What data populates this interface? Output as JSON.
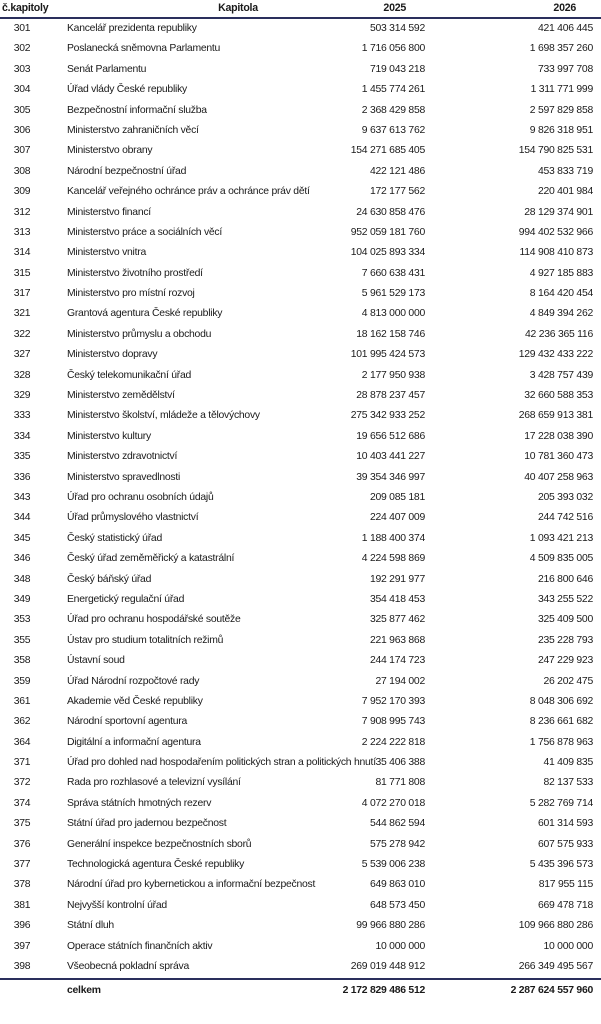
{
  "header": {
    "number": "č.kapitoly",
    "name": "Kapitola",
    "year1": "2025",
    "year2": "2026"
  },
  "rows": [
    {
      "number": "301",
      "name": "Kancelář prezidenta republiky",
      "y2025": "503 314 592",
      "y2026": "421 406 445"
    },
    {
      "number": "302",
      "name": "Poslanecká sněmovna Parlamentu",
      "y2025": "1 716 056 800",
      "y2026": "1 698 357 260"
    },
    {
      "number": "303",
      "name": "Senát Parlamentu",
      "y2025": "719 043 218",
      "y2026": "733 997 708"
    },
    {
      "number": "304",
      "name": "Úřad vlády České republiky",
      "y2025": "1 455 774 261",
      "y2026": "1 311 771 999"
    },
    {
      "number": "305",
      "name": "Bezpečnostní informační služba",
      "y2025": "2 368 429 858",
      "y2026": "2 597 829 858"
    },
    {
      "number": "306",
      "name": "Ministerstvo zahraničních věcí",
      "y2025": "9 637 613 762",
      "y2026": "9 826 318 951"
    },
    {
      "number": "307",
      "name": "Ministerstvo obrany",
      "y2025": "154 271 685 405",
      "y2026": "154 790 825 531"
    },
    {
      "number": "308",
      "name": "Národní bezpečnostní úřad",
      "y2025": "422 121 486",
      "y2026": "453 833 719"
    },
    {
      "number": "309",
      "name": "Kancelář veřejného ochránce práv a ochránce práv dětí",
      "y2025": "172 177 562",
      "y2026": "220 401 984"
    },
    {
      "number": "312",
      "name": "Ministerstvo financí",
      "y2025": "24 630 858 476",
      "y2026": "28 129 374 901"
    },
    {
      "number": "313",
      "name": "Ministerstvo práce a sociálních věcí",
      "y2025": "952 059 181 760",
      "y2026": "994 402 532 966"
    },
    {
      "number": "314",
      "name": "Ministerstvo vnitra",
      "y2025": "104 025 893 334",
      "y2026": "114 908 410 873"
    },
    {
      "number": "315",
      "name": "Ministerstvo životního prostředí",
      "y2025": "7 660 638 431",
      "y2026": "4 927 185 883"
    },
    {
      "number": "317",
      "name": "Ministerstvo pro místní rozvoj",
      "y2025": "5 961 529 173",
      "y2026": "8 164 420 454"
    },
    {
      "number": "321",
      "name": "Grantová agentura České republiky",
      "y2025": "4 813 000 000",
      "y2026": "4 849 394 262"
    },
    {
      "number": "322",
      "name": "Ministerstvo průmyslu a obchodu",
      "y2025": "18 162 158 746",
      "y2026": "42 236 365 116"
    },
    {
      "number": "327",
      "name": "Ministerstvo dopravy",
      "y2025": "101 995 424 573",
      "y2026": "129 432 433 222"
    },
    {
      "number": "328",
      "name": "Český telekomunikační úřad",
      "y2025": "2 177 950 938",
      "y2026": "3 428 757 439"
    },
    {
      "number": "329",
      "name": "Ministerstvo zemědělství",
      "y2025": "28 878 237 457",
      "y2026": "32 660 588 353"
    },
    {
      "number": "333",
      "name": "Ministerstvo školství, mládeže a tělovýchovy",
      "y2025": "275 342 933 252",
      "y2026": "268 659 913 381"
    },
    {
      "number": "334",
      "name": "Ministerstvo kultury",
      "y2025": "19 656 512 686",
      "y2026": "17 228 038 390"
    },
    {
      "number": "335",
      "name": "Ministerstvo zdravotnictví",
      "y2025": "10 403 441 227",
      "y2026": "10 781 360 473"
    },
    {
      "number": "336",
      "name": "Ministerstvo spravedlnosti",
      "y2025": "39 354 346 997",
      "y2026": "40 407 258 963"
    },
    {
      "number": "343",
      "name": "Úřad pro ochranu osobních údajů",
      "y2025": "209 085 181",
      "y2026": "205 393 032"
    },
    {
      "number": "344",
      "name": "Úřad průmyslového vlastnictví",
      "y2025": "224 407 009",
      "y2026": "244 742 516"
    },
    {
      "number": "345",
      "name": "Český statistický úřad",
      "y2025": "1 188 400 374",
      "y2026": "1 093 421 213"
    },
    {
      "number": "346",
      "name": "Český úřad zeměměřický a katastrální",
      "y2025": "4 224 598 869",
      "y2026": "4 509 835 005"
    },
    {
      "number": "348",
      "name": "Český báňský úřad",
      "y2025": "192 291 977",
      "y2026": "216 800 646"
    },
    {
      "number": "349",
      "name": "Energetický regulační úřad",
      "y2025": "354 418 453",
      "y2026": "343 255 522"
    },
    {
      "number": "353",
      "name": "Úřad pro ochranu hospodářské soutěže",
      "y2025": "325 877 462",
      "y2026": "325 409 500"
    },
    {
      "number": "355",
      "name": "Ústav pro studium totalitních režimů",
      "y2025": "221 963 868",
      "y2026": "235 228 793"
    },
    {
      "number": "358",
      "name": "Ústavní soud",
      "y2025": "244 174 723",
      "y2026": "247 229 923"
    },
    {
      "number": "359",
      "name": "Úřad Národní rozpočtové rady",
      "y2025": "27 194 002",
      "y2026": "26 202 475"
    },
    {
      "number": "361",
      "name": "Akademie věd České republiky",
      "y2025": "7 952 170 393",
      "y2026": "8 048 306 692"
    },
    {
      "number": "362",
      "name": "Národní sportovní agentura",
      "y2025": "7 908 995 743",
      "y2026": "8 236 661 682"
    },
    {
      "number": "364",
      "name": "Digitální a informační agentura",
      "y2025": "2 224 222 818",
      "y2026": "1 756 878 963"
    },
    {
      "number": "371",
      "name": "Úřad pro dohled nad hospodařením politických stran a politických hnutí",
      "y2025": "35 406 388",
      "y2026": "41 409 835"
    },
    {
      "number": "372",
      "name": "Rada pro rozhlasové a televizní vysílání",
      "y2025": "81 771 808",
      "y2026": "82 137 533"
    },
    {
      "number": "374",
      "name": "Správa státních hmotných rezerv",
      "y2025": "4 072 270 018",
      "y2026": "5 282 769 714"
    },
    {
      "number": "375",
      "name": "Státní úřad pro jadernou bezpečnost",
      "y2025": "544 862 594",
      "y2026": "601 314 593"
    },
    {
      "number": "376",
      "name": "Generální inspekce bezpečnostních sborů",
      "y2025": "575 278 942",
      "y2026": "607 575 933"
    },
    {
      "number": "377",
      "name": "Technologická agentura České republiky",
      "y2025": "5 539 006 238",
      "y2026": "5 435 396 573"
    },
    {
      "number": "378",
      "name": "Národní úřad pro kybernetickou a informační bezpečnost",
      "y2025": "649 863 010",
      "y2026": "817 955 115"
    },
    {
      "number": "381",
      "name": "Nejvyšší kontrolní úřad",
      "y2025": "648 573 450",
      "y2026": "669 478 718"
    },
    {
      "number": "396",
      "name": "Státní dluh",
      "y2025": "99 966 880 286",
      "y2026": "109 966 880 286"
    },
    {
      "number": "397",
      "name": "Operace státních finančních aktiv",
      "y2025": "10 000 000",
      "y2026": "10 000 000"
    },
    {
      "number": "398",
      "name": "Všeobecná pokladní správa",
      "y2025": "269 019 448 912",
      "y2026": "266 349 495 567"
    }
  ],
  "total": {
    "label": "celkem",
    "y2025": "2 172 829 486 512",
    "y2026": "2 287 624 557 960"
  },
  "colors": {
    "rule": "#2a2f5c",
    "text": "#1a1a1a"
  }
}
